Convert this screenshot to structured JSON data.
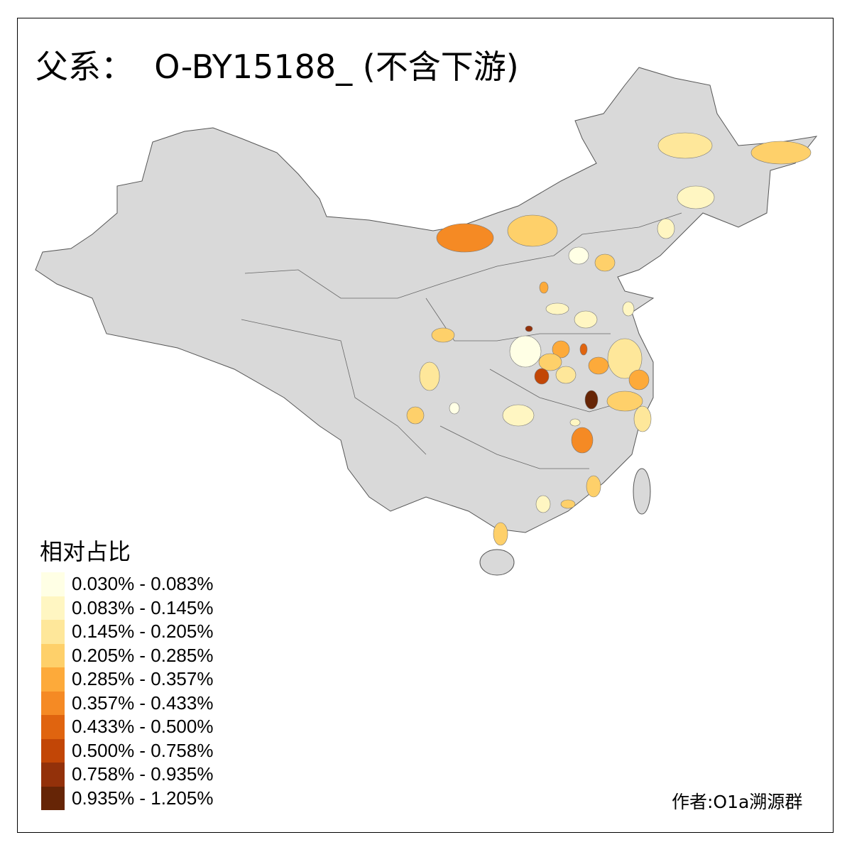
{
  "title": "父系：  O-BY15188_ (不含下游)",
  "legend": {
    "title": "相对占比",
    "items": [
      {
        "label": "0.030% - 0.083%",
        "color": "#FFFFE5"
      },
      {
        "label": "0.083% - 0.145%",
        "color": "#FFF6C2"
      },
      {
        "label": "0.145% - 0.205%",
        "color": "#FEE79A"
      },
      {
        "label": "0.205% - 0.285%",
        "color": "#FED06A"
      },
      {
        "label": "0.285% - 0.357%",
        "color": "#FDAA3A"
      },
      {
        "label": "0.357% - 0.433%",
        "color": "#F58A24"
      },
      {
        "label": "0.433% - 0.500%",
        "color": "#E0640F"
      },
      {
        "label": "0.500% - 0.758%",
        "color": "#C24606"
      },
      {
        "label": "0.758% - 0.935%",
        "color": "#93310A"
      },
      {
        "label": "0.935% - 1.205%",
        "color": "#662506"
      }
    ]
  },
  "map": {
    "base_color": "#D9D9D9",
    "border_color": "#555555"
  },
  "credit": "作者:O1a溯源群"
}
